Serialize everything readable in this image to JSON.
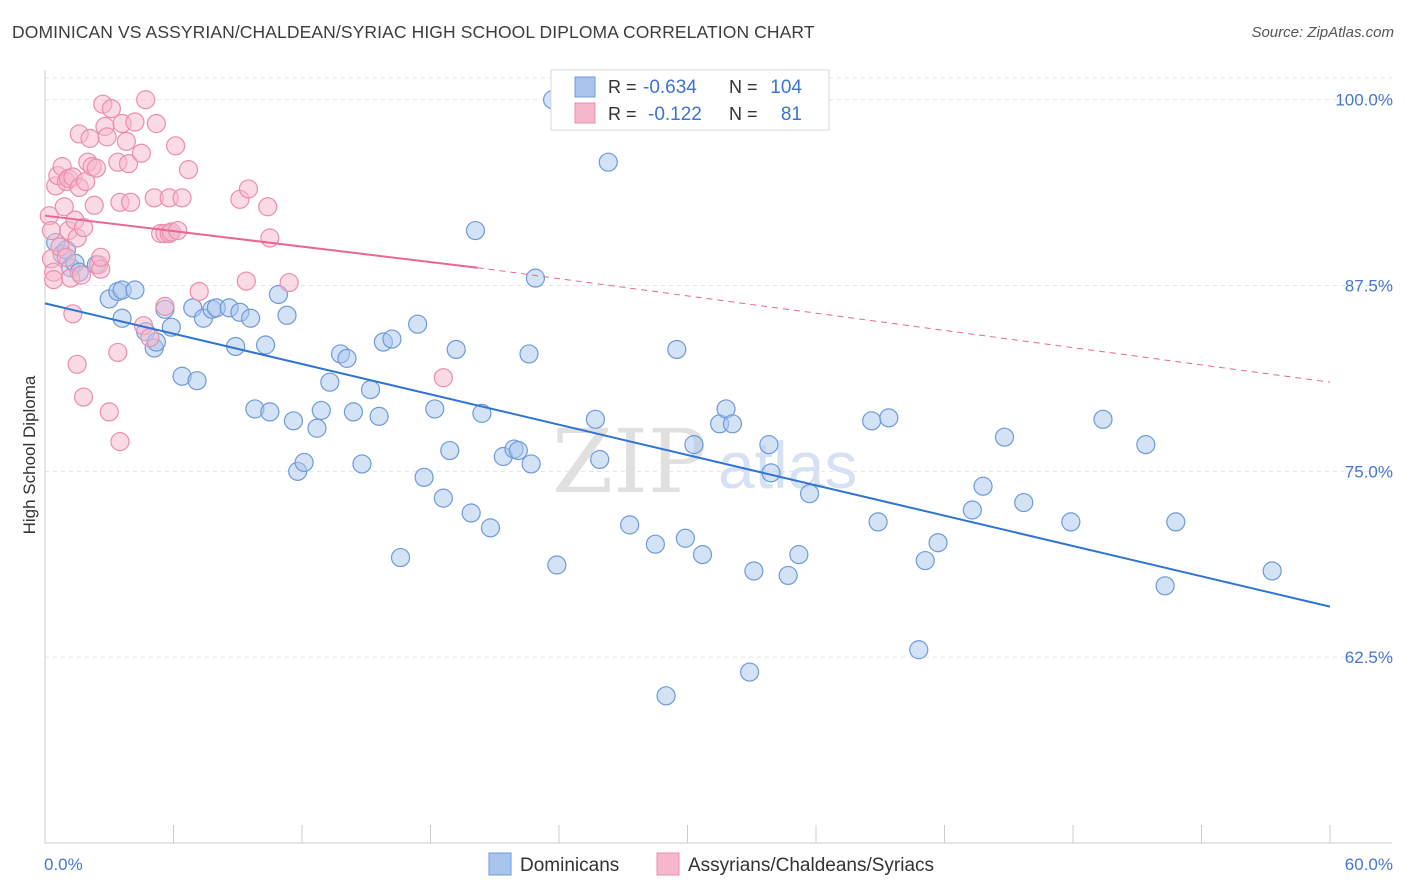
{
  "header": {
    "title": "DOMINICAN VS ASSYRIAN/CHALDEAN/SYRIAC HIGH SCHOOL DIPLOMA CORRELATION CHART",
    "source": "Source: ZipAtlas.com"
  },
  "watermark": {
    "zip": "ZIP",
    "atlas": "atlas"
  },
  "colors": {
    "blue_fill": "#a9c5ee",
    "blue_stroke": "#6f9ad8",
    "blue_line": "#2f74d0",
    "pink_fill": "#f6b7cc",
    "pink_stroke": "#ec8dac",
    "pink_line": "#e8688f",
    "grid": "#e3e3e3",
    "tick_label": "#4477cc"
  },
  "legend": {
    "r_label": "R =",
    "n_label": "N =",
    "rows": [
      {
        "r": "-0.634",
        "n": "104"
      },
      {
        "r": "-0.122",
        "n": "81"
      }
    ]
  },
  "chart_data": {
    "type": "scatter",
    "title": "DOMINICAN VS ASSYRIAN/CHALDEAN/SYRIAC HIGH SCHOOL DIPLOMA CORRELATION CHART",
    "xlabel": "",
    "ylabel": "High School Diploma",
    "xlim": [
      0,
      60
    ],
    "ylim": [
      50.0,
      102.0
    ],
    "x_tick_labels": [
      "0.0%",
      "60.0%"
    ],
    "y_ticks": [
      62.5,
      75.0,
      87.5,
      100.0
    ],
    "y_tick_labels": [
      "62.5%",
      "75.0%",
      "87.5%",
      "100.0%"
    ],
    "grid": true,
    "legend_position": "top-center",
    "series": [
      {
        "name": "Dominicans",
        "r": -0.634,
        "n": 104,
        "trend": {
          "x": [
            0,
            60
          ],
          "y": [
            86.3,
            65.9
          ],
          "style": "solid"
        },
        "points": [
          [
            0.5,
            90.4
          ],
          [
            0.8,
            89.6
          ],
          [
            1.0,
            89.9
          ],
          [
            1.2,
            88.7
          ],
          [
            1.4,
            89.0
          ],
          [
            1.6,
            88.4
          ],
          [
            2.4,
            88.9
          ],
          [
            3.0,
            86.6
          ],
          [
            3.4,
            87.1
          ],
          [
            3.6,
            87.2
          ],
          [
            4.2,
            87.2
          ],
          [
            3.6,
            85.3
          ],
          [
            4.7,
            84.4
          ],
          [
            5.1,
            83.3
          ],
          [
            5.2,
            83.7
          ],
          [
            5.6,
            85.9
          ],
          [
            5.9,
            84.7
          ],
          [
            6.4,
            81.4
          ],
          [
            6.9,
            86.0
          ],
          [
            7.1,
            81.1
          ],
          [
            7.4,
            85.3
          ],
          [
            7.8,
            85.9
          ],
          [
            8.0,
            86.0
          ],
          [
            8.6,
            86.0
          ],
          [
            8.9,
            83.4
          ],
          [
            9.1,
            85.7
          ],
          [
            9.6,
            85.3
          ],
          [
            9.8,
            79.2
          ],
          [
            10.3,
            83.5
          ],
          [
            10.5,
            79.0
          ],
          [
            10.9,
            86.9
          ],
          [
            11.3,
            85.5
          ],
          [
            11.6,
            78.4
          ],
          [
            11.8,
            75.0
          ],
          [
            12.1,
            75.6
          ],
          [
            12.7,
            77.9
          ],
          [
            12.9,
            79.1
          ],
          [
            13.3,
            81.0
          ],
          [
            13.8,
            82.9
          ],
          [
            14.1,
            82.6
          ],
          [
            14.4,
            79.0
          ],
          [
            14.8,
            75.5
          ],
          [
            15.2,
            80.5
          ],
          [
            15.6,
            78.7
          ],
          [
            15.8,
            83.7
          ],
          [
            16.2,
            83.9
          ],
          [
            16.6,
            69.2
          ],
          [
            17.4,
            84.9
          ],
          [
            17.7,
            74.6
          ],
          [
            18.2,
            79.2
          ],
          [
            18.6,
            73.2
          ],
          [
            18.9,
            76.4
          ],
          [
            19.2,
            83.2
          ],
          [
            19.9,
            72.2
          ],
          [
            20.1,
            91.2
          ],
          [
            20.4,
            78.9
          ],
          [
            20.8,
            71.2
          ],
          [
            21.4,
            76.0
          ],
          [
            21.9,
            76.5
          ],
          [
            22.1,
            76.4
          ],
          [
            22.6,
            82.9
          ],
          [
            22.7,
            75.5
          ],
          [
            22.9,
            88.0
          ],
          [
            23.7,
            100.0
          ],
          [
            23.9,
            68.7
          ],
          [
            25.1,
            100.0
          ],
          [
            25.7,
            78.5
          ],
          [
            25.9,
            75.8
          ],
          [
            26.3,
            95.8
          ],
          [
            27.3,
            71.4
          ],
          [
            28.5,
            70.1
          ],
          [
            29.0,
            59.9
          ],
          [
            29.5,
            83.2
          ],
          [
            29.9,
            70.5
          ],
          [
            30.3,
            76.8
          ],
          [
            30.7,
            69.4
          ],
          [
            31.5,
            78.2
          ],
          [
            31.8,
            79.2
          ],
          [
            32.1,
            78.2
          ],
          [
            32.9,
            61.5
          ],
          [
            33.1,
            68.3
          ],
          [
            33.8,
            76.8
          ],
          [
            33.9,
            74.9
          ],
          [
            34.7,
            68.0
          ],
          [
            35.2,
            69.4
          ],
          [
            35.7,
            73.5
          ],
          [
            38.6,
            78.4
          ],
          [
            38.9,
            71.6
          ],
          [
            39.4,
            78.6
          ],
          [
            40.8,
            63.0
          ],
          [
            41.1,
            69.0
          ],
          [
            41.7,
            70.2
          ],
          [
            43.3,
            72.4
          ],
          [
            43.8,
            74.0
          ],
          [
            44.8,
            77.3
          ],
          [
            45.7,
            72.9
          ],
          [
            47.9,
            71.6
          ],
          [
            49.4,
            78.5
          ],
          [
            51.4,
            76.8
          ],
          [
            52.3,
            67.3
          ],
          [
            52.8,
            71.6
          ],
          [
            57.3,
            68.3
          ]
        ]
      },
      {
        "name": "Assyrians/Chaldeans/Syriacs",
        "r": -0.122,
        "n": 81,
        "trend": {
          "x": [
            0,
            20.2
          ],
          "y": [
            92.2,
            88.7
          ],
          "style": "solid",
          "extended": {
            "x": [
              20.2,
              60
            ],
            "y": [
              88.7,
              81.0
            ],
            "style": "dashed"
          }
        },
        "points": [
          [
            0.2,
            92.2
          ],
          [
            0.3,
            91.2
          ],
          [
            0.3,
            89.3
          ],
          [
            0.4,
            88.4
          ],
          [
            0.4,
            87.9
          ],
          [
            0.5,
            94.2
          ],
          [
            0.6,
            94.9
          ],
          [
            0.7,
            90.1
          ],
          [
            0.8,
            95.5
          ],
          [
            0.9,
            92.8
          ],
          [
            1.0,
            94.5
          ],
          [
            1.0,
            89.4
          ],
          [
            1.1,
            94.7
          ],
          [
            1.1,
            91.2
          ],
          [
            1.2,
            88.0
          ],
          [
            1.3,
            85.6
          ],
          [
            1.3,
            94.8
          ],
          [
            1.4,
            91.9
          ],
          [
            1.5,
            90.7
          ],
          [
            1.5,
            82.2
          ],
          [
            1.6,
            97.7
          ],
          [
            1.6,
            94.1
          ],
          [
            1.7,
            88.2
          ],
          [
            1.8,
            80.0
          ],
          [
            1.8,
            91.4
          ],
          [
            1.9,
            94.5
          ],
          [
            2.0,
            95.8
          ],
          [
            2.1,
            97.4
          ],
          [
            2.2,
            95.5
          ],
          [
            2.3,
            92.9
          ],
          [
            2.4,
            95.4
          ],
          [
            2.5,
            88.9
          ],
          [
            2.6,
            88.6
          ],
          [
            2.6,
            89.4
          ],
          [
            2.7,
            99.7
          ],
          [
            2.8,
            98.2
          ],
          [
            2.9,
            97.5
          ],
          [
            3.0,
            79.0
          ],
          [
            3.1,
            99.4
          ],
          [
            3.4,
            83.0
          ],
          [
            3.4,
            95.8
          ],
          [
            3.5,
            77.0
          ],
          [
            3.5,
            93.1
          ],
          [
            3.6,
            98.4
          ],
          [
            3.8,
            97.2
          ],
          [
            3.9,
            95.7
          ],
          [
            4.0,
            93.1
          ],
          [
            4.2,
            98.5
          ],
          [
            4.5,
            96.4
          ],
          [
            4.6,
            84.8
          ],
          [
            4.7,
            100.0
          ],
          [
            4.9,
            84.0
          ],
          [
            5.1,
            93.4
          ],
          [
            5.2,
            98.4
          ],
          [
            5.4,
            91.0
          ],
          [
            5.6,
            86.1
          ],
          [
            5.6,
            91.0
          ],
          [
            5.8,
            93.4
          ],
          [
            5.8,
            91.0
          ],
          [
            5.9,
            91.1
          ],
          [
            6.1,
            96.9
          ],
          [
            6.2,
            91.2
          ],
          [
            6.4,
            93.4
          ],
          [
            6.7,
            95.3
          ],
          [
            7.2,
            87.1
          ],
          [
            9.1,
            93.3
          ],
          [
            9.4,
            87.8
          ],
          [
            9.5,
            94.0
          ],
          [
            10.4,
            92.8
          ],
          [
            10.5,
            90.7
          ],
          [
            11.4,
            87.7
          ],
          [
            18.6,
            81.3
          ]
        ]
      }
    ]
  },
  "bottom_legend": [
    {
      "label": "Dominicans"
    },
    {
      "label": "Assyrians/Chaldeans/Syriacs"
    }
  ]
}
